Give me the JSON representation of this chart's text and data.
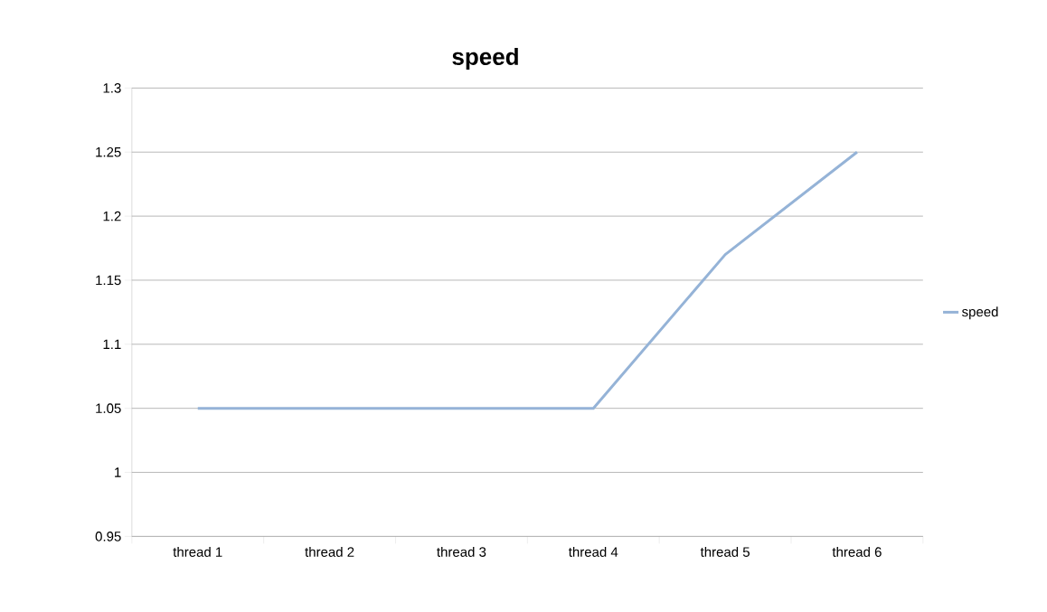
{
  "chart_data": {
    "type": "line",
    "title": "speed",
    "categories": [
      "thread 1",
      "thread 2",
      "thread 3",
      "thread 4",
      "thread 5",
      "thread 6"
    ],
    "series": [
      {
        "name": "speed",
        "color": "#95b3d7",
        "values": [
          1.05,
          1.05,
          1.05,
          1.05,
          1.17,
          1.25
        ]
      }
    ],
    "ylim": [
      0.95,
      1.3
    ],
    "yticks": [
      0.95,
      1,
      1.05,
      1.1,
      1.15,
      1.2,
      1.25,
      1.3
    ],
    "grid": "y",
    "legend": "right"
  }
}
